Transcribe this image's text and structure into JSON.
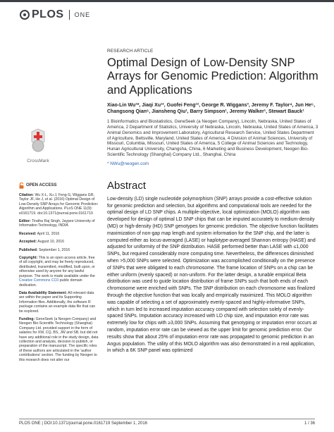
{
  "journal": {
    "brand": "PLOS",
    "sub": "ONE",
    "brand_color": "#3c3f44"
  },
  "crossmark": {
    "label": "CrossMark"
  },
  "sidebar": {
    "open_access": "OPEN ACCESS",
    "citation_label": "Citation:",
    "citation_text": "Wu X-L, Xu J, Feng G, Wiggans GR, Taylor JF, He J, et al. (2016) Optimal Design of Low-Density SNP Arrays for Genomic Prediction: Algorithm and Applications. PLoS ONE 11(9): e0161719. doi:10.1371/journal.pone.0161719",
    "editor_label": "Editor:",
    "editor_text": "Tiratha Raj Singh, Jaypee University of Information Technology, INDIA",
    "received_label": "Received:",
    "received_text": "April 11, 2016",
    "accepted_label": "Accepted:",
    "accepted_text": "August 10, 2016",
    "published_label": "Published:",
    "published_text": "September 1, 2016",
    "copyright_label": "Copyright:",
    "copyright_text_1": "This is an open access article, free of all copyright, and may be freely reproduced, distributed, transmitted, modified, built upon, or otherwise used by anyone for any lawful purpose. The work is made available under the",
    "copyright_link": "Creative Commons CC0",
    "copyright_text_2": "public domain dedication.",
    "data_label": "Data Availability Statement:",
    "data_text": "All relevant data are within the paper and its Supporting Information files. Additionally, the software R package contains an example data file that can be explored.",
    "funding_label": "Funding:",
    "funding_text": "GeneSeek (a Neogen Company) and Neogen Bio-Scientific Technology (Shanghai) Company Ltd. provided support in the form of salaries for XW, CQ, BS, JW and SB, but did not have any additional role in the study design, data collection and analysis, decision to publish, or preparation of the manuscript. The specific roles of these authors are articulated in the 'author contributions' section. The funding by Neogen to this research does not alter our"
  },
  "article": {
    "label": "RESEARCH ARTICLE",
    "title": "Optimal Design of Low-Density SNP Arrays for Genomic Prediction: Algorithm and Applications",
    "authors": "Xiao-Lin Wu¹*, Jiaqi Xu¹², Guofei Feng¹², George R. Wiggans³, Jeremy F. Taylor⁴, Jun He⁵, Changsong Qian⁶, Jiansheng Qiu¹, Barry Simpson¹, Jeremy Walker¹, Stewart Bauck¹",
    "affiliations": "1 Bioinformatics and Biostatistics, GeneSeek (a Neogen Company), Lincoln, Nebraska, United States of America, 2 Department of Statistics, University of Nebraska, Lincoln, Nebraska, United States of America, 3 Animal Genomics and Improvement Laboratory, Agricultural Research Service, United States Department of Agriculture, Beltsville, Maryland, United States of America, 4 Division of Animal Sciences, University of Missouri, Columbia, Missouri, United States of America, 5 College of Animal Sciences and Technology, Hunan Agricultural University, Changsha, China, 6 Marketing and Business Development, Neogen Bio-Scientific Technology (Shanghai) Company Ltd., Shanghai, China",
    "email": "* NWu@neogen.com",
    "abstract_heading": "Abstract",
    "abstract": "Low-density (LD) single nucleotide polymorphism (SNP) arrays provide a cost-effective solution for genomic prediction and selection, but algorithms and computational tools are needed for the optimal design of LD SNP chips. A multiple-objective, local optimization (MOLO) algorithm was developed for design of optimal LD SNP chips that can be imputed accurately to medium-density (MD) or high-density (HD) SNP genotypes for genomic prediction. The objective function facilitates maximization of non-gap map length and system information for the SNP chip, and the latter is computed either as locus-averaged (LASE) or haplotype-averaged Shannon entropy (HASE) and adjusted for uniformity of the SNP distribution. HASE performed better than LASE with ≤1,000 SNPs, but required considerably more computing time. Nevertheless, the differences diminished when >5,000 SNPs were selected. Optimization was accomplished conditionally on the presence of SNPs that were obligated to each chromosome. The frame location of SNPs on a chip can be either uniform (evenly spaced) or non-uniform. For the latter design, a tunable empirical Beta distribution was used to guide location distribution of frame SNPs such that both ends of each chromosome were enriched with SNPs. The SNP distribution on each chromosome was finalized through the objective function that was locally and empirically maximized. This MOLO algorithm was capable of selecting a set of approximately evenly-spaced and highly-informative SNPs, which in turn led to increased imputation accuracy compared with selection solely of evenly-spaced SNPs. Imputation accuracy increased with LD chip size, and imputation error rate was extremely low for chips with ≥3,000 SNPs. Assuming that genotyping or imputation error occurs at random, imputation error rate can be viewed as the upper limit for genomic prediction error. Our results show that about 25% of imputation error rate was propagated to genomic prediction in an Angus population. The utility of this MOLO algorithm was also demonstrated in a real application, in which a 6K SNP panel was optimized"
  },
  "footer": {
    "left": "PLOS ONE | DOI:10.1371/journal.pone.0161719   September 1, 2016",
    "right": "1 / 36"
  }
}
